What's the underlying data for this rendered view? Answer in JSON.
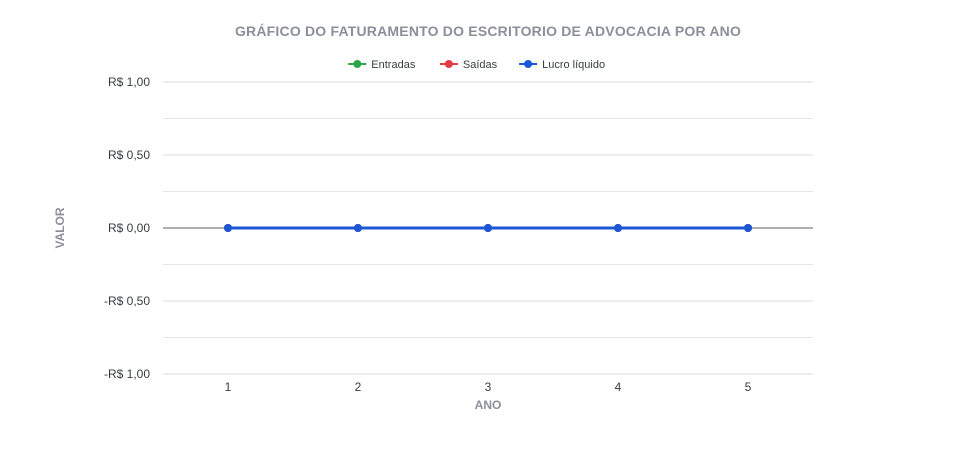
{
  "chart_data": {
    "type": "line",
    "title": "GRÁFICO DO FATURAMENTO DO ESCRITORIO DE ADVOCACIA POR ANO",
    "xlabel": "ANO",
    "ylabel": "VALOR",
    "categories": [
      "1",
      "2",
      "3",
      "4",
      "5"
    ],
    "y_ticks": [
      "R$ 1,00",
      "R$ 0,50",
      "R$ 0,00",
      "-R$ 0,50",
      "-R$ 1,00"
    ],
    "ylim": [
      -1,
      1
    ],
    "grid": true,
    "legend_position": "top-center",
    "series": [
      {
        "name": "Entradas",
        "color": "#2ca44a",
        "values": [
          0,
          0,
          0,
          0,
          0
        ]
      },
      {
        "name": "Saídas",
        "color": "#e53b47",
        "values": [
          0,
          0,
          0,
          0,
          0
        ]
      },
      {
        "name": "Lucro líquido",
        "color": "#1a56d6",
        "values": [
          0,
          0,
          0,
          0,
          0
        ]
      }
    ]
  }
}
